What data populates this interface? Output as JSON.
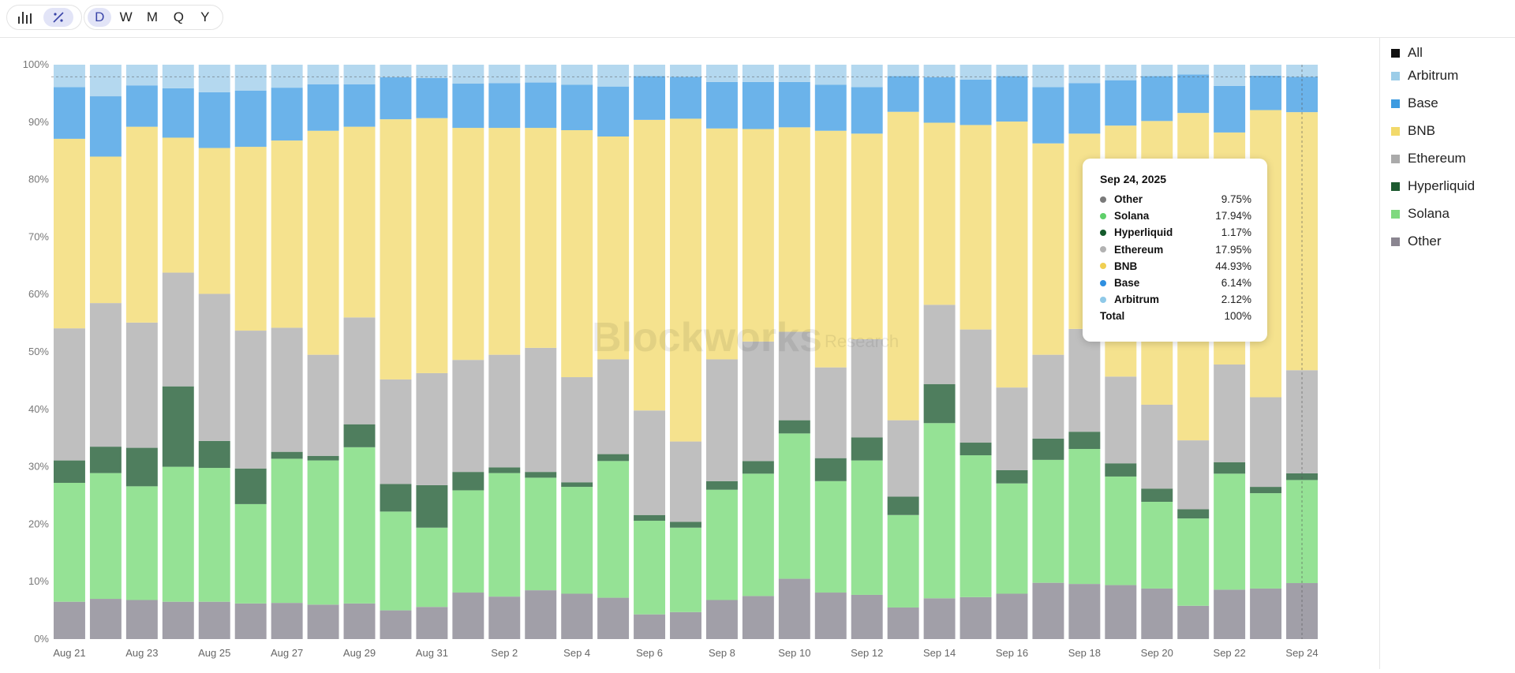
{
  "toolbar": {
    "icons": [
      {
        "name": "bar-chart-icon",
        "glyph": "▐█▌"
      },
      {
        "name": "percent-icon",
        "glyph": "%"
      }
    ],
    "periods": [
      "D",
      "W",
      "M",
      "Q",
      "Y"
    ],
    "active_period": "D"
  },
  "watermark": {
    "brand": "Blockworks",
    "sub": "Research"
  },
  "legend": [
    {
      "label": "All",
      "color": "#111111"
    },
    {
      "label": "Arbitrum",
      "color": "#9ccde8"
    },
    {
      "label": "Base",
      "color": "#3d9be0"
    },
    {
      "label": "BNB",
      "color": "#f2d96a"
    },
    {
      "label": "Ethereum",
      "color": "#aaaaaa"
    },
    {
      "label": "Hyperliquid",
      "color": "#1d5a30"
    },
    {
      "label": "Solana",
      "color": "#7fd97f"
    },
    {
      "label": "Other",
      "color": "#8a8590"
    }
  ],
  "tooltip": {
    "date": "Sep 24, 2025",
    "rows": [
      {
        "name": "Other",
        "value": "9.75%",
        "color": "#7a7a7a"
      },
      {
        "name": "Solana",
        "value": "17.94%",
        "color": "#5fcf6a"
      },
      {
        "name": "Hyperliquid",
        "value": "1.17%",
        "color": "#155a2c"
      },
      {
        "name": "Ethereum",
        "value": "17.95%",
        "color": "#b2b2b2"
      },
      {
        "name": "BNB",
        "value": "44.93%",
        "color": "#f0cf52"
      },
      {
        "name": "Base",
        "value": "6.14%",
        "color": "#2f8fe0"
      },
      {
        "name": "Arbitrum",
        "value": "2.12%",
        "color": "#8fc9e8"
      }
    ],
    "total_label": "Total",
    "total_value": "100%"
  },
  "chart_data": {
    "type": "bar",
    "stacked": true,
    "normalized": true,
    "ylim": [
      0,
      100
    ],
    "y_ticks": [
      "0%",
      "10%",
      "20%",
      "30%",
      "40%",
      "50%",
      "60%",
      "70%",
      "80%",
      "90%",
      "100%"
    ],
    "x_tick_labels": [
      "Aug 21",
      "Aug 23",
      "Aug 25",
      "Aug 27",
      "Aug 29",
      "Aug 31",
      "Sep 2",
      "Sep 4",
      "Sep 6",
      "Sep 8",
      "Sep 10",
      "Sep 12",
      "Sep 14",
      "Sep 16",
      "Sep 18",
      "Sep 20",
      "Sep 22",
      "Sep 24"
    ],
    "categories": [
      "Aug 21",
      "Aug 22",
      "Aug 23",
      "Aug 24",
      "Aug 25",
      "Aug 26",
      "Aug 27",
      "Aug 28",
      "Aug 29",
      "Aug 30",
      "Aug 31",
      "Sep 1",
      "Sep 2",
      "Sep 3",
      "Sep 4",
      "Sep 5",
      "Sep 6",
      "Sep 7",
      "Sep 8",
      "Sep 9",
      "Sep 10",
      "Sep 11",
      "Sep 12",
      "Sep 13",
      "Sep 14",
      "Sep 15",
      "Sep 16",
      "Sep 17",
      "Sep 18",
      "Sep 19",
      "Sep 20",
      "Sep 21",
      "Sep 22",
      "Sep 23",
      "Sep 24"
    ],
    "grid": false,
    "legend_position": "right",
    "highlighted_category": "Sep 24",
    "series": [
      {
        "name": "Other",
        "color": "#a19fa8",
        "values": [
          6.5,
          7.0,
          6.8,
          6.5,
          6.5,
          6.2,
          6.3,
          6.0,
          6.2,
          5.0,
          5.6,
          8.1,
          7.4,
          8.5,
          7.9,
          7.2,
          4.3,
          4.7,
          6.8,
          7.5,
          10.5,
          8.1,
          7.7,
          5.5,
          7.1,
          7.3,
          7.9,
          9.8,
          9.6,
          9.4,
          8.8,
          5.8,
          8.6,
          8.8,
          9.75
        ]
      },
      {
        "name": "Solana",
        "color": "#95e295",
        "values": [
          20.7,
          21.9,
          19.8,
          23.5,
          23.3,
          17.3,
          25.1,
          25.1,
          27.2,
          17.2,
          13.8,
          17.8,
          21.5,
          19.6,
          18.6,
          23.8,
          16.3,
          14.7,
          19.2,
          21.3,
          25.3,
          19.4,
          23.4,
          16.1,
          30.5,
          24.7,
          19.2,
          21.4,
          23.5,
          18.9,
          15.1,
          15.2,
          20.2,
          16.6,
          17.94
        ]
      },
      {
        "name": "Hyperliquid",
        "color": "#4f7e5e",
        "values": [
          3.9,
          4.6,
          6.7,
          14.0,
          4.7,
          6.2,
          1.2,
          0.8,
          4.0,
          4.8,
          7.4,
          3.2,
          1.0,
          1.0,
          0.8,
          1.2,
          1.0,
          1.0,
          1.5,
          2.2,
          2.3,
          4.0,
          4.0,
          3.2,
          6.8,
          2.2,
          2.3,
          3.7,
          3.0,
          2.3,
          2.3,
          1.6,
          2.0,
          1.1,
          1.17
        ]
      },
      {
        "name": "Ethereum",
        "color": "#bfbfbf",
        "values": [
          23.0,
          25.0,
          21.8,
          19.8,
          25.6,
          24.0,
          21.6,
          17.6,
          18.6,
          18.2,
          19.5,
          19.5,
          19.6,
          21.6,
          18.3,
          16.5,
          18.2,
          14.0,
          21.2,
          20.8,
          15.4,
          15.8,
          17.1,
          13.3,
          13.8,
          19.7,
          14.4,
          14.6,
          17.9,
          15.1,
          14.6,
          12.0,
          17.0,
          15.6,
          17.95
        ]
      },
      {
        "name": "BNB",
        "color": "#f5e28e",
        "values": [
          33.0,
          25.5,
          34.1,
          23.5,
          25.4,
          32.0,
          32.6,
          39.0,
          33.2,
          45.3,
          44.4,
          40.4,
          39.5,
          38.3,
          43.0,
          38.8,
          50.6,
          56.2,
          40.2,
          37.0,
          35.6,
          41.2,
          35.8,
          53.7,
          31.7,
          35.6,
          46.3,
          36.8,
          34.0,
          43.7,
          49.4,
          57.0,
          40.4,
          50.0,
          44.93
        ]
      },
      {
        "name": "Base",
        "color": "#6bb3ea",
        "values": [
          9.0,
          10.5,
          7.2,
          8.6,
          9.7,
          9.8,
          9.2,
          8.1,
          7.4,
          7.3,
          7.0,
          7.7,
          7.8,
          7.9,
          7.9,
          8.7,
          7.6,
          7.3,
          8.1,
          8.2,
          7.9,
          8.0,
          8.1,
          6.2,
          7.9,
          7.9,
          7.9,
          9.8,
          8.8,
          7.9,
          7.8,
          6.7,
          8.1,
          6.0,
          6.14
        ]
      },
      {
        "name": "Arbitrum",
        "color": "#b4d8ef",
        "values": [
          3.9,
          5.5,
          3.6,
          4.1,
          4.8,
          4.5,
          4.0,
          3.4,
          3.4,
          2.2,
          2.3,
          3.3,
          3.2,
          3.1,
          3.5,
          3.8,
          2.0,
          2.1,
          3.0,
          3.0,
          3.0,
          3.5,
          3.9,
          2.0,
          2.2,
          2.6,
          2.0,
          3.9,
          3.2,
          2.7,
          2.0,
          1.7,
          3.7,
          1.9,
          2.12
        ]
      }
    ]
  }
}
